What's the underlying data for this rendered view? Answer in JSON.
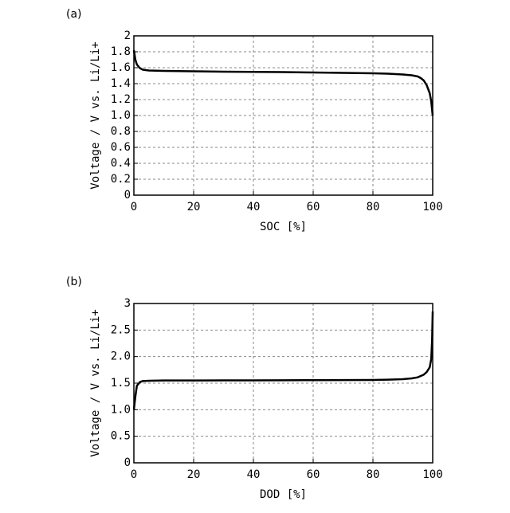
{
  "chart_data": [
    {
      "type": "line",
      "label": "(a)",
      "xlabel": "SOC [%]",
      "ylabel": "Voltage / V vs. Li/Li+",
      "x": [
        0,
        0.5,
        1,
        2,
        3,
        5,
        10,
        20,
        30,
        40,
        50,
        60,
        70,
        80,
        85,
        90,
        93,
        95,
        96,
        97,
        98,
        99,
        99.5,
        100
      ],
      "values": [
        1.82,
        1.7,
        1.64,
        1.595,
        1.575,
        1.565,
        1.56,
        1.555,
        1.55,
        1.548,
        1.545,
        1.54,
        1.535,
        1.53,
        1.525,
        1.515,
        1.505,
        1.49,
        1.47,
        1.44,
        1.38,
        1.28,
        1.18,
        1.0
      ],
      "color": "#000000",
      "xlim": [
        0,
        100
      ],
      "ylim": [
        0,
        2
      ],
      "xticks": [
        0,
        20,
        40,
        60,
        80,
        100
      ],
      "yticks": [
        0,
        0.2,
        0.4,
        0.6,
        0.8,
        {
          "value": 1,
          "label": "1.0"
        },
        1.2,
        1.4,
        1.6,
        1.8,
        2
      ],
      "grid": true
    },
    {
      "type": "line",
      "label": "(b)",
      "xlabel": "DOD [%]",
      "ylabel": "Voltage / V vs. Li/Li+",
      "x": [
        0,
        0.5,
        1,
        2,
        3,
        5,
        10,
        20,
        30,
        40,
        50,
        60,
        70,
        80,
        85,
        90,
        93,
        95,
        97,
        98,
        99,
        99.5,
        99.8,
        100
      ],
      "values": [
        1.0,
        1.25,
        1.45,
        1.52,
        1.54,
        1.545,
        1.55,
        1.55,
        1.552,
        1.553,
        1.555,
        1.556,
        1.558,
        1.56,
        1.565,
        1.575,
        1.59,
        1.61,
        1.66,
        1.71,
        1.8,
        1.95,
        2.3,
        2.85
      ],
      "color": "#000000",
      "xlim": [
        0,
        100
      ],
      "ylim": [
        0,
        3
      ],
      "xticks": [
        0,
        20,
        40,
        60,
        80,
        100
      ],
      "yticks": [
        0,
        0.5,
        {
          "value": 1,
          "label": "1.0"
        },
        1.5,
        {
          "value": 2,
          "label": "2.0"
        },
        2.5,
        3
      ],
      "grid": true
    }
  ]
}
